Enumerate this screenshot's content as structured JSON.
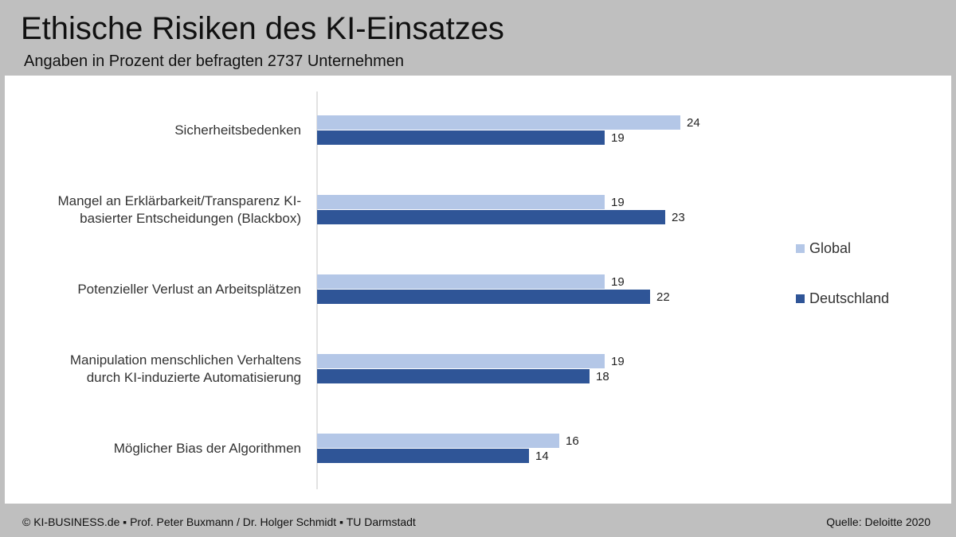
{
  "header": {
    "title": "Ethische Risiken des KI-Einsatzes",
    "subtitle": "Angaben in Prozent der befragten 2737 Unternehmen"
  },
  "footer": {
    "left": "© KI-BUSINESS.de ▪ Prof. Peter Buxmann / Dr. Holger Schmidt ▪ TU Darmstadt",
    "right": "Quelle: Deloitte 2020"
  },
  "colors": {
    "global": "#b4c7e7",
    "deutschland": "#2f5597",
    "axis": "#d9d9d9"
  },
  "chart_data": {
    "type": "bar",
    "orientation": "horizontal",
    "categories": [
      [
        "Sicherheitsbedenken"
      ],
      [
        "Mangel an Erklärbarkeit/Transparenz KI-",
        "basierter Entscheidungen (Blackbox)"
      ],
      [
        "Potenzieller Verlust an Arbeitsplätzen"
      ],
      [
        "Manipulation menschlichen Verhaltens",
        "durch KI-induzierte Automatisierung"
      ],
      [
        "Möglicher Bias der Algorithmen"
      ]
    ],
    "series": [
      {
        "name": "Global",
        "values": [
          24,
          19,
          19,
          19,
          16
        ]
      },
      {
        "name": "Deutschland",
        "values": [
          19,
          23,
          22,
          18,
          14
        ]
      }
    ],
    "xlim": [
      0,
      24
    ],
    "grid": false,
    "legend_position": "right",
    "data_labels": true
  }
}
